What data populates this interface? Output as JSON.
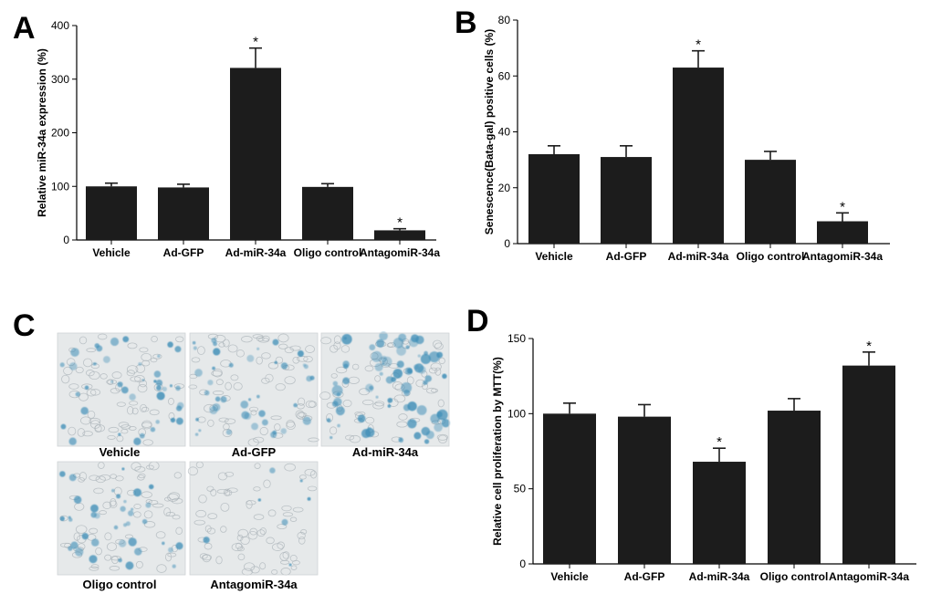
{
  "panel_labels": {
    "a": "A",
    "b": "B",
    "c": "C",
    "d": "D"
  },
  "bar_color": "#1c1c1c",
  "significance_marker": "*",
  "panel_c": {
    "images": [
      {
        "caption": "Vehicle",
        "stain_level": 0.45
      },
      {
        "caption": "Ad-GFP",
        "stain_level": 0.45
      },
      {
        "caption": "Ad-miR-34a",
        "stain_level": 0.85
      },
      {
        "caption": "Oligo control",
        "stain_level": 0.42
      },
      {
        "caption": "AntagomiR-34a",
        "stain_level": 0.08
      }
    ],
    "stain_color": "#3f8fb8",
    "background_color": "#e6e9ea"
  },
  "chart_data": [
    {
      "panel": "A",
      "type": "bar",
      "categories": [
        "Vehicle",
        "Ad-GFP",
        "Ad-miR-34a",
        "Oligo control",
        "AntagomiR-34a"
      ],
      "values": [
        100,
        98,
        321,
        99,
        18
      ],
      "errors": [
        6,
        6,
        37,
        6,
        3
      ],
      "significant": [
        false,
        false,
        true,
        false,
        true
      ],
      "ylabel": "Relative miR-34a expression (%)",
      "xlabel": "",
      "ylim": [
        0,
        400
      ],
      "yticks": [
        "0",
        "100",
        "200",
        "300",
        "400"
      ],
      "grid": false
    },
    {
      "panel": "B",
      "type": "bar",
      "categories": [
        "Vehicle",
        "Ad-GFP",
        "Ad-miR-34a",
        "Oligo control",
        "AntagomiR-34a"
      ],
      "values": [
        32,
        31,
        63,
        30,
        8
      ],
      "errors": [
        3,
        4,
        6,
        3,
        3
      ],
      "significant": [
        false,
        false,
        true,
        false,
        true
      ],
      "ylabel": "Senescence(Bata-gal) positive cells (%)",
      "xlabel": "",
      "ylim": [
        0,
        80
      ],
      "yticks": [
        "0",
        "20",
        "40",
        "60",
        "80"
      ],
      "grid": false
    },
    {
      "panel": "D",
      "type": "bar",
      "categories": [
        "Vehicle",
        "Ad-GFP",
        "Ad-miR-34a",
        "Oligo control",
        "AntagomiR-34a"
      ],
      "values": [
        100,
        98,
        68,
        102,
        132
      ],
      "errors": [
        7,
        8,
        9,
        8,
        9
      ],
      "significant": [
        false,
        false,
        true,
        false,
        true
      ],
      "ylabel": "Relative cell proliferation by MTT(%)",
      "xlabel": "",
      "ylim": [
        0,
        150
      ],
      "yticks": [
        "0",
        "50",
        "100",
        "150"
      ],
      "grid": false
    }
  ]
}
